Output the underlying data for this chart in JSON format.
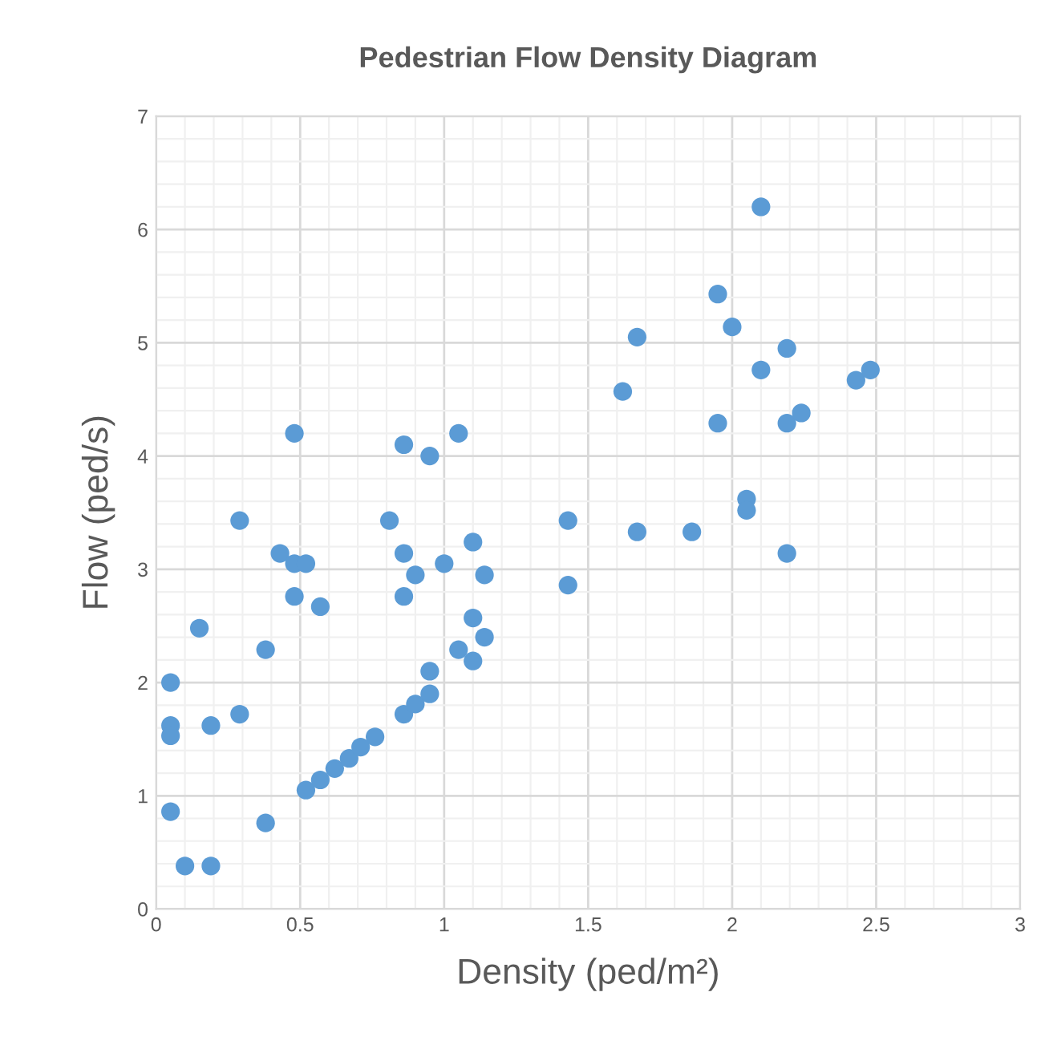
{
  "chart_data": {
    "type": "scatter",
    "title": "Pedestrian Flow Density Diagram",
    "xlabel": "Density (ped/m²)",
    "ylabel": "Flow (ped/s)",
    "xlim": [
      0,
      3
    ],
    "xticks": [
      0,
      0.5,
      1,
      1.5,
      2,
      2.5,
      3
    ],
    "ylim": [
      0,
      7
    ],
    "yticks": [
      0,
      1,
      2,
      3,
      4,
      5,
      6,
      7
    ],
    "grid": true,
    "marker": "circle",
    "series": [
      {
        "color": "#5b9bd5",
        "x": [
          0.05,
          0.05,
          0.05,
          0.05,
          0.1,
          0.15,
          0.19,
          0.19,
          0.29,
          0.29,
          0.38,
          0.38,
          0.43,
          0.48,
          0.48,
          0.48,
          0.52,
          0.52,
          0.57,
          0.57,
          0.62,
          0.67,
          0.71,
          0.76,
          0.81,
          0.86,
          0.86,
          0.86,
          0.86,
          0.9,
          0.9,
          0.95,
          0.95,
          0.95,
          1.0,
          1.05,
          1.05,
          1.1,
          1.1,
          1.1,
          1.14,
          1.14,
          1.43,
          1.43,
          1.62,
          1.67,
          1.67,
          1.86,
          1.95,
          1.95,
          2.0,
          2.05,
          2.05,
          2.1,
          2.1,
          2.19,
          2.19,
          2.19,
          2.24,
          2.43,
          2.48
        ],
        "values": [
          2.0,
          1.62,
          1.53,
          0.86,
          0.38,
          2.48,
          1.62,
          0.38,
          3.43,
          1.72,
          2.29,
          0.76,
          3.14,
          4.2,
          3.05,
          2.76,
          3.05,
          1.05,
          2.67,
          1.14,
          1.24,
          1.33,
          1.43,
          1.52,
          3.43,
          4.1,
          3.14,
          2.76,
          1.72,
          2.95,
          1.81,
          4.0,
          2.1,
          1.9,
          3.05,
          4.2,
          2.29,
          3.24,
          2.57,
          2.19,
          2.95,
          2.4,
          3.43,
          2.86,
          4.57,
          5.05,
          3.33,
          3.33,
          5.43,
          4.29,
          5.14,
          3.62,
          3.52,
          6.2,
          4.76,
          4.95,
          4.29,
          3.14,
          4.38,
          4.67,
          4.76
        ]
      }
    ]
  }
}
